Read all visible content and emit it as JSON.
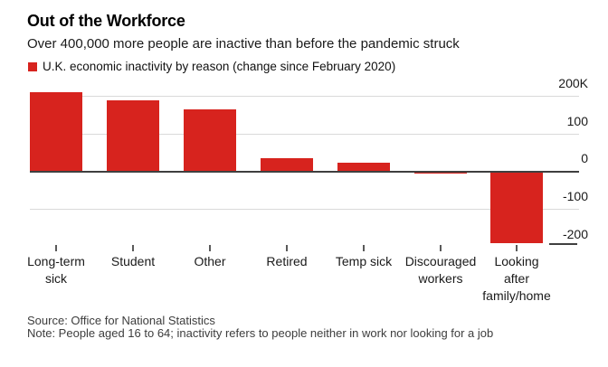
{
  "header": {
    "title": "Out of the Workforce",
    "subtitle": "Over 400,000 more people are inactive than before the pandemic struck"
  },
  "legend": {
    "label": "U.K. economic inactivity by reason (change since February 2020)",
    "swatch_color": "#d7231e"
  },
  "chart_data": {
    "type": "bar",
    "title": "U.K. economic inactivity by reason (change since February 2020)",
    "unit": "thousands of people (K)",
    "categories": [
      "Long-term sick",
      "Student",
      "Other",
      "Retired",
      "Temp sick",
      "Discouraged workers",
      "Looking after family/home"
    ],
    "category_label_lines": [
      [
        "Long-term",
        "sick"
      ],
      [
        "Student"
      ],
      [
        "Other"
      ],
      [
        "Retired"
      ],
      [
        "Temp sick"
      ],
      [
        "Discouraged",
        "workers"
      ],
      [
        "Looking",
        "after",
        "family/home"
      ]
    ],
    "values": [
      210,
      188,
      163,
      35,
      22,
      -6,
      -192
    ],
    "bar_color": "#d7231e",
    "ylim": [
      -200,
      220
    ],
    "yticks": [
      {
        "value": 200,
        "label": "200K",
        "line": "light"
      },
      {
        "value": 100,
        "label": "100",
        "line": "light"
      },
      {
        "value": 0,
        "label": "0",
        "line": "dark"
      },
      {
        "value": -100,
        "label": "-100",
        "line": "light"
      },
      {
        "value": -200,
        "label": "-200",
        "line": "none"
      }
    ],
    "grid": "horizontal",
    "legend_position": "top-left"
  },
  "footer": {
    "source": "Source: Office for National Statistics",
    "note": "Note: People aged 16 to 64; inactivity refers to people neither in work nor looking for a job"
  },
  "colors": {
    "accent_red": "#d7231e",
    "grid_light": "#d9d9d9",
    "axis_dark": "#3f3f3f",
    "text_primary": "#000000",
    "text_secondary": "#3d3d3d"
  }
}
